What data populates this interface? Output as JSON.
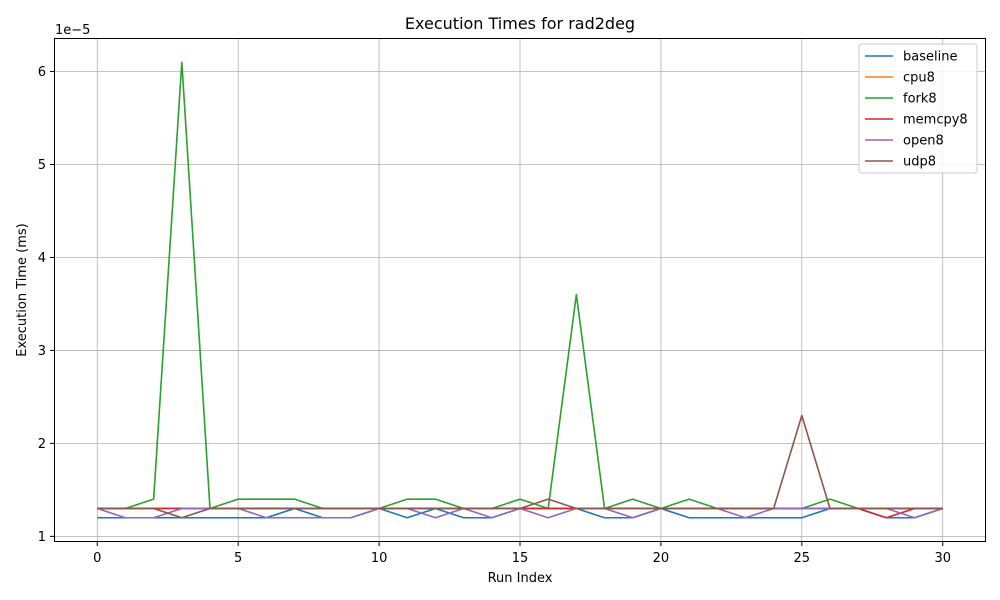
{
  "chart_data": {
    "type": "line",
    "title": "Execution Times for rad2deg",
    "xlabel": "Run Index",
    "ylabel": "Execution Time (ms)",
    "y_scale_label": "1e−5",
    "y_unit_multiplier": 1e-05,
    "xlim": [
      -1.5,
      31.5
    ],
    "ylim": [
      0.95,
      6.35
    ],
    "x_ticks": [
      0,
      5,
      10,
      15,
      20,
      25,
      30
    ],
    "y_ticks": [
      1,
      2,
      3,
      4,
      5,
      6
    ],
    "grid": true,
    "legend_position": "top-right",
    "x": [
      0,
      1,
      2,
      3,
      4,
      5,
      6,
      7,
      8,
      9,
      10,
      11,
      12,
      13,
      14,
      15,
      16,
      17,
      18,
      19,
      20,
      21,
      22,
      23,
      24,
      25,
      26,
      27,
      28,
      29,
      30
    ],
    "series": [
      {
        "name": "baseline",
        "color": "#1f77b4",
        "values": [
          1.2,
          1.2,
          1.2,
          1.2,
          1.2,
          1.2,
          1.2,
          1.3,
          1.2,
          1.2,
          1.3,
          1.2,
          1.3,
          1.2,
          1.2,
          1.3,
          1.3,
          1.3,
          1.2,
          1.2,
          1.3,
          1.2,
          1.2,
          1.2,
          1.2,
          1.2,
          1.3,
          1.3,
          1.2,
          1.2,
          1.3
        ]
      },
      {
        "name": "cpu8",
        "color": "#ff7f0e",
        "values": [
          1.3,
          1.3,
          1.3,
          1.3,
          1.3,
          1.3,
          1.3,
          1.3,
          1.3,
          1.3,
          1.3,
          1.3,
          1.3,
          1.3,
          1.3,
          1.3,
          1.3,
          1.3,
          1.3,
          1.3,
          1.3,
          1.3,
          1.3,
          1.3,
          1.3,
          1.3,
          1.3,
          1.3,
          1.3,
          1.3,
          1.3
        ]
      },
      {
        "name": "fork8",
        "color": "#2ca02c",
        "values": [
          1.3,
          1.3,
          1.4,
          6.1,
          1.3,
          1.4,
          1.4,
          1.4,
          1.3,
          1.3,
          1.3,
          1.4,
          1.4,
          1.3,
          1.3,
          1.4,
          1.3,
          3.6,
          1.3,
          1.4,
          1.3,
          1.4,
          1.3,
          1.3,
          1.3,
          1.3,
          1.4,
          1.3,
          1.3,
          1.3,
          1.3
        ]
      },
      {
        "name": "memcpy8",
        "color": "#d62728",
        "values": [
          1.3,
          1.3,
          1.3,
          1.3,
          1.3,
          1.3,
          1.3,
          1.3,
          1.3,
          1.3,
          1.3,
          1.3,
          1.3,
          1.3,
          1.3,
          1.3,
          1.3,
          1.3,
          1.3,
          1.3,
          1.3,
          1.3,
          1.3,
          1.3,
          1.3,
          1.3,
          1.3,
          1.3,
          1.2,
          1.3,
          1.3
        ]
      },
      {
        "name": "open8",
        "color": "#9467bd",
        "values": [
          1.3,
          1.2,
          1.2,
          1.3,
          1.3,
          1.3,
          1.2,
          1.2,
          1.2,
          1.2,
          1.3,
          1.3,
          1.2,
          1.3,
          1.2,
          1.3,
          1.2,
          1.3,
          1.3,
          1.2,
          1.3,
          1.3,
          1.3,
          1.2,
          1.3,
          1.3,
          1.3,
          1.3,
          1.3,
          1.2,
          1.3
        ]
      },
      {
        "name": "udp8",
        "color": "#8c564b",
        "values": [
          1.3,
          1.3,
          1.3,
          1.2,
          1.3,
          1.3,
          1.3,
          1.3,
          1.3,
          1.3,
          1.3,
          1.3,
          1.3,
          1.3,
          1.3,
          1.3,
          1.4,
          1.3,
          1.3,
          1.3,
          1.3,
          1.3,
          1.3,
          1.3,
          1.3,
          2.3,
          1.3,
          1.3,
          1.3,
          1.3,
          1.3
        ]
      }
    ]
  }
}
